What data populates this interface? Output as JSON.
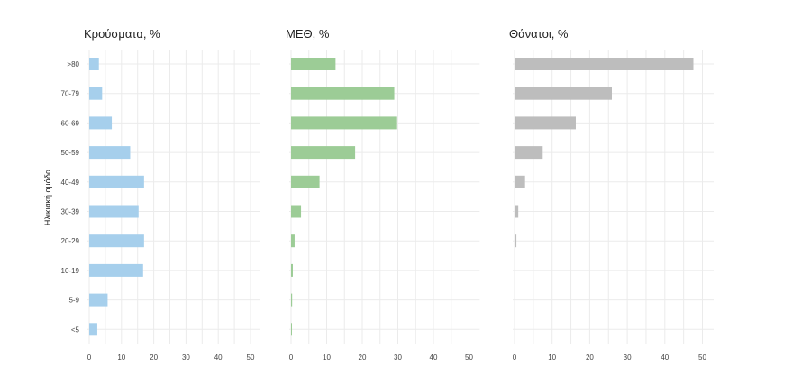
{
  "ylabel": "Ηλικιακή ομάδα",
  "categories": [
    "<5",
    "5-9",
    "10-19",
    "20-29",
    "30-39",
    "40-49",
    "50-59",
    "60-69",
    "70-79",
    ">80"
  ],
  "chart_data": [
    {
      "type": "bar",
      "orientation": "horizontal",
      "title": "Κρούσματα, %",
      "color": "#a6cfec",
      "xlim": [
        0,
        50
      ],
      "xticks": [
        0,
        10,
        20,
        30,
        40,
        50
      ],
      "categories": [
        "<5",
        "5-9",
        "10-19",
        "20-29",
        "30-39",
        "40-49",
        "50-59",
        "60-69",
        "70-79",
        ">80"
      ],
      "values": [
        2.5,
        5.7,
        16.7,
        17.0,
        15.3,
        17.0,
        12.7,
        7.0,
        4.0,
        3.0
      ]
    },
    {
      "type": "bar",
      "orientation": "horizontal",
      "title": "ΜΕΘ, %",
      "color": "#9ccc96",
      "xlim": [
        0,
        50
      ],
      "xticks": [
        0,
        10,
        20,
        30,
        40,
        50
      ],
      "categories": [
        "<5",
        "5-9",
        "10-19",
        "20-29",
        "30-39",
        "40-49",
        "50-59",
        "60-69",
        "70-79",
        ">80"
      ],
      "values": [
        0.2,
        0.3,
        0.5,
        1.0,
        2.8,
        8.0,
        18.0,
        29.8,
        29.0,
        12.5
      ]
    },
    {
      "type": "bar",
      "orientation": "horizontal",
      "title": "Θάνατοι, %",
      "color": "#bdbdbd",
      "xlim": [
        0,
        50
      ],
      "xticks": [
        0,
        10,
        20,
        30,
        40,
        50
      ],
      "categories": [
        "<5",
        "5-9",
        "10-19",
        "20-29",
        "30-39",
        "40-49",
        "50-59",
        "60-69",
        "70-79",
        ">80"
      ],
      "values": [
        0.1,
        0.1,
        0.2,
        0.5,
        1.0,
        2.8,
        7.5,
        16.3,
        25.9,
        47.6
      ]
    }
  ]
}
